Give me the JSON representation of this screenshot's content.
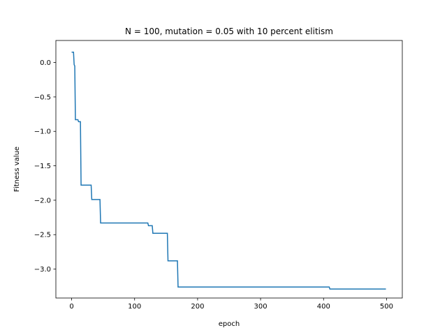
{
  "chart_data": {
    "type": "line",
    "title": "N = 100, mutation = 0.05 with 10 percent elitism",
    "xlabel": "epoch",
    "ylabel": "Fitness value",
    "xlim": [
      -25,
      525
    ],
    "ylim": [
      -3.42,
      0.32
    ],
    "xticks": [
      0,
      100,
      200,
      300,
      400,
      500
    ],
    "yticks": [
      0.0,
      -0.5,
      -1.0,
      -1.5,
      -2.0,
      -2.5,
      -3.0
    ],
    "ytick_labels": [
      "0.0",
      "−0.5",
      "−1.0",
      "−1.5",
      "−2.0",
      "−2.5",
      "−3.0"
    ],
    "grid": false,
    "series": [
      {
        "name": "fitness",
        "color": "#1f77b4",
        "step": true,
        "x": [
          0,
          3,
          4,
          5,
          6,
          10,
          11,
          14,
          15,
          31,
          32,
          45,
          46,
          121,
          122,
          128,
          129,
          152,
          153,
          168,
          169,
          409,
          410,
          499
        ],
        "y": [
          0.15,
          0.15,
          -0.03,
          -0.05,
          -0.83,
          -0.83,
          -0.86,
          -0.86,
          -1.78,
          -1.78,
          -1.99,
          -1.99,
          -2.33,
          -2.33,
          -2.37,
          -2.37,
          -2.48,
          -2.48,
          -2.88,
          -2.88,
          -3.26,
          -3.26,
          -3.29,
          -3.29
        ]
      }
    ]
  }
}
